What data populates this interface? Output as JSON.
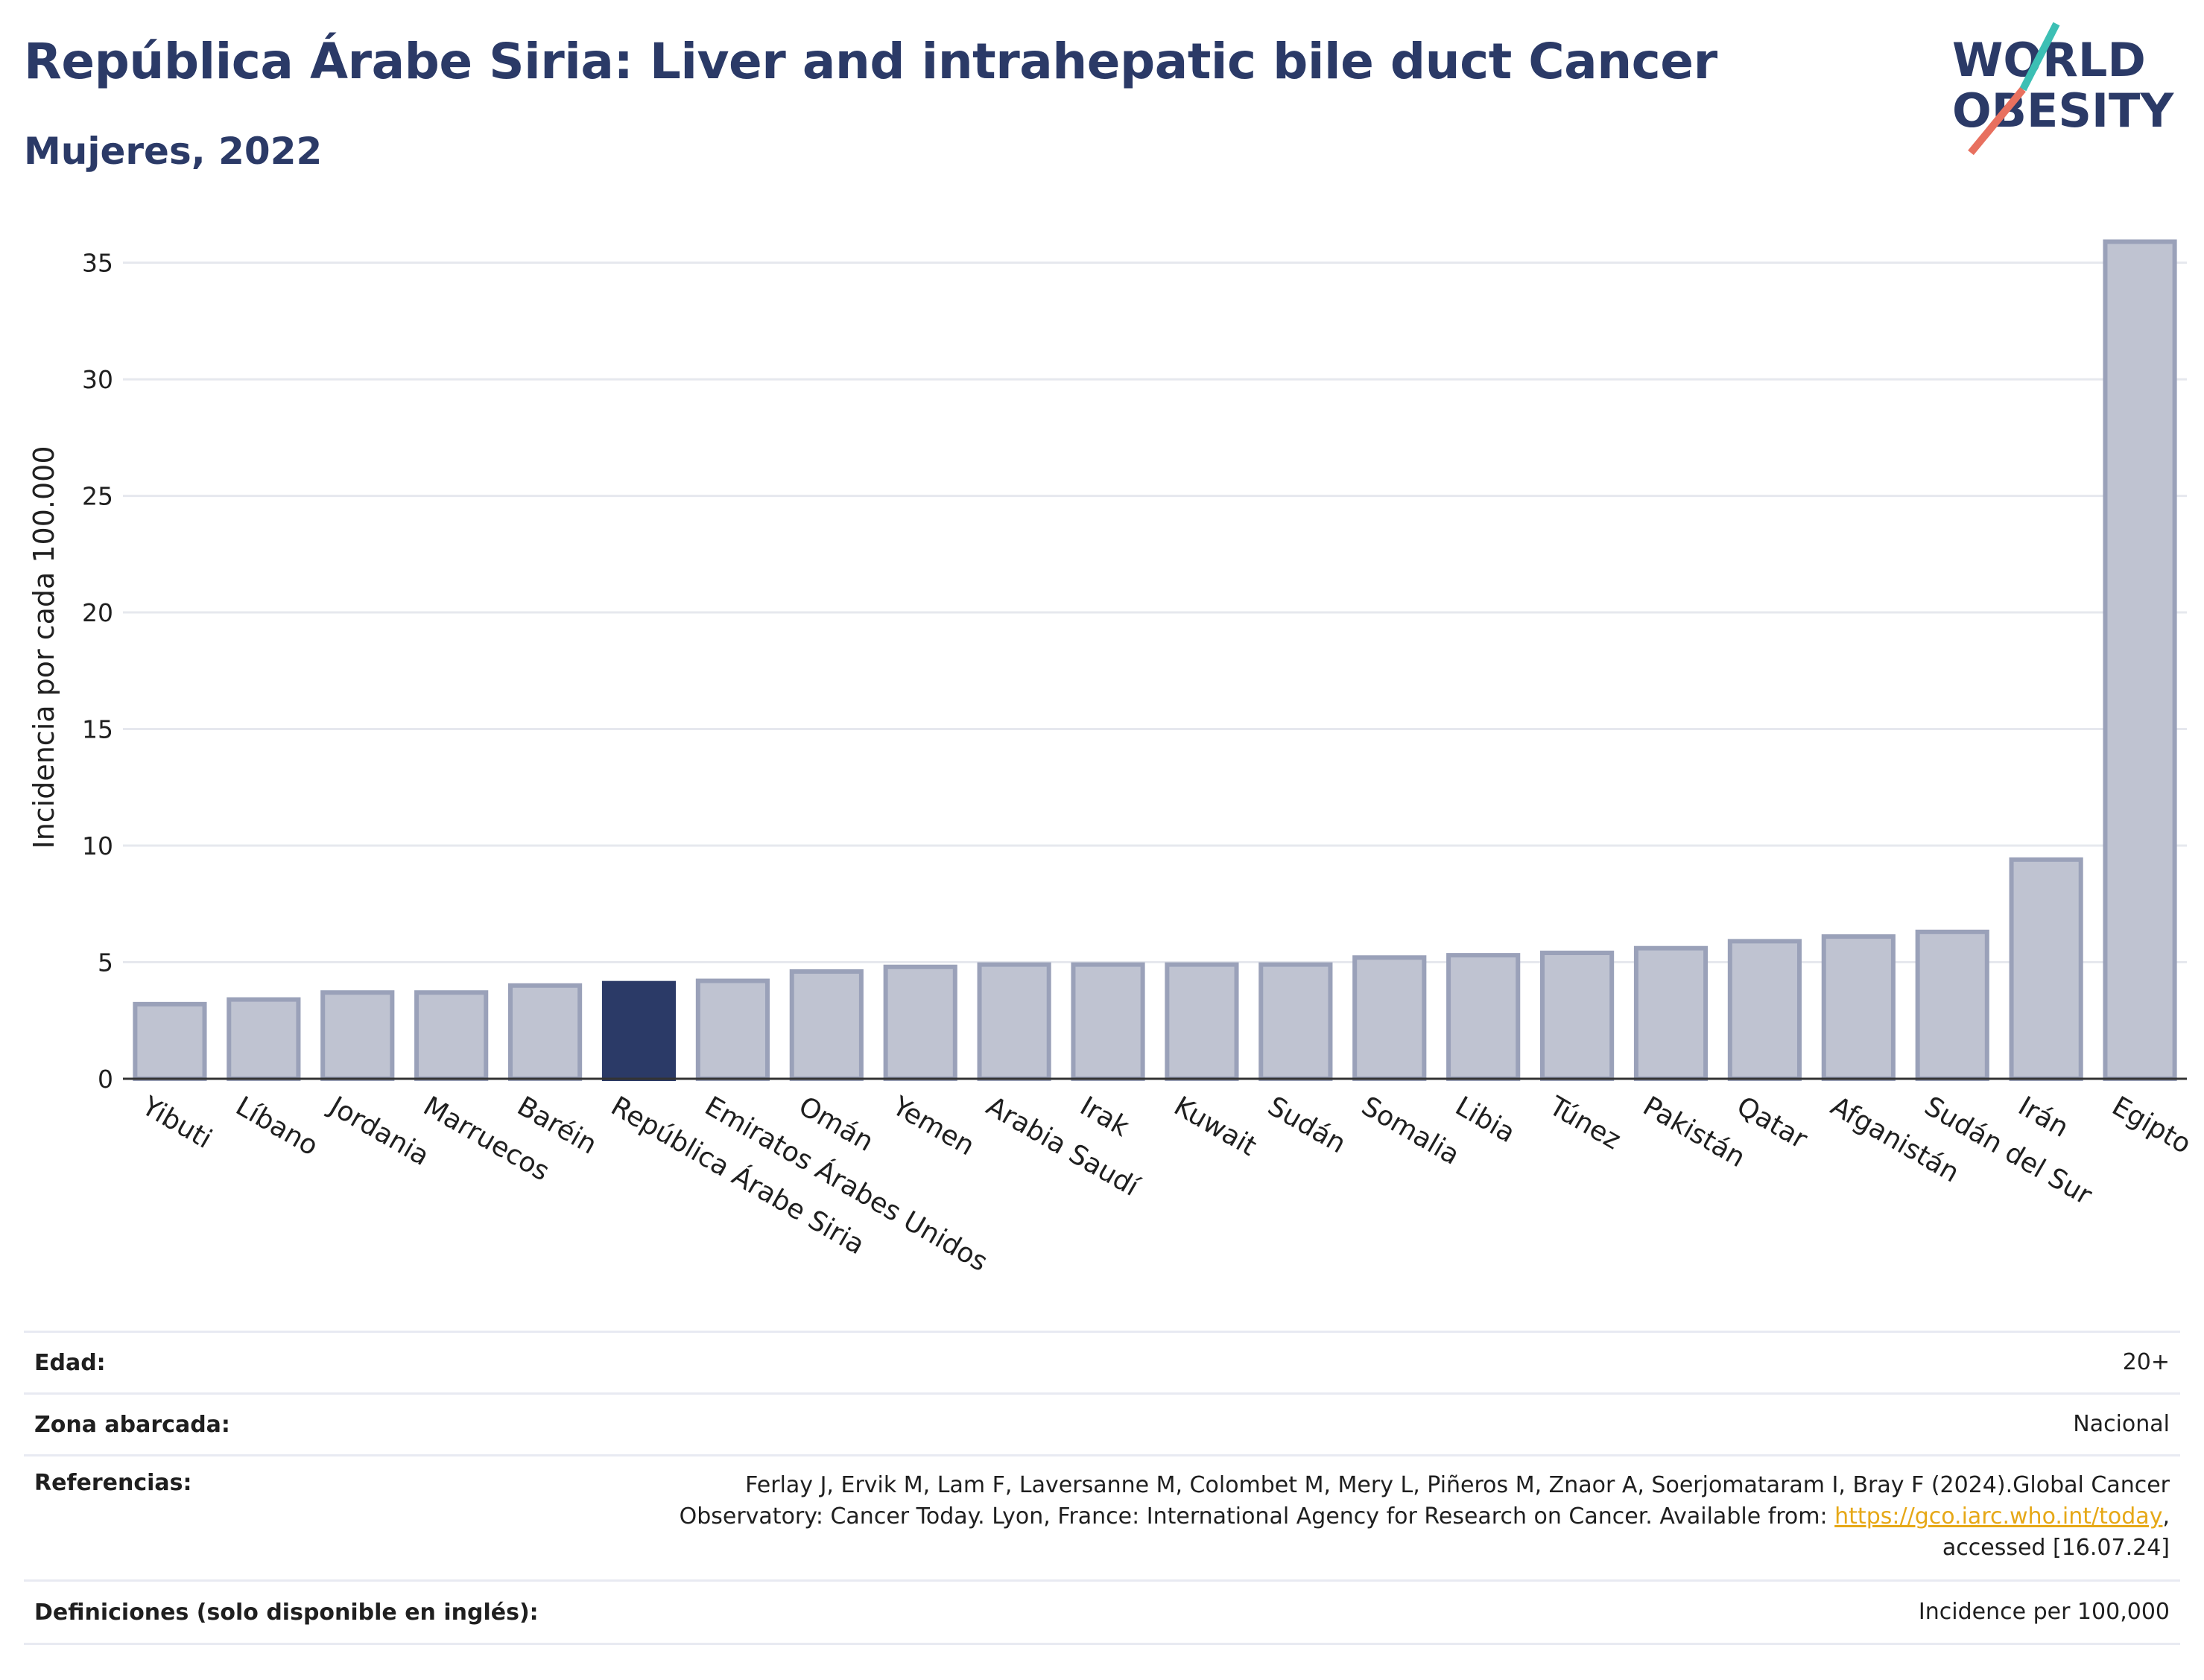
{
  "header": {
    "title": "República Árabe Siria: Liver and intrahepatic bile duct Cancer",
    "subtitle": "Mujeres, 2022"
  },
  "logo": {
    "line1": "WORLD",
    "line2": "OBESITY"
  },
  "colors": {
    "highlight": "#2b3a67",
    "bar_fill": "#bfc3d1",
    "bar_stroke": "#9aa1b9",
    "title": "#2b3a67",
    "logo_teal": "#3cbfb4",
    "logo_coral": "#e8705f",
    "link": "#e6a817"
  },
  "chart_data": {
    "type": "bar",
    "title": "República Árabe Siria: Liver and intrahepatic bile duct Cancer",
    "subtitle": "Mujeres, 2022",
    "xlabel": "",
    "ylabel": "Incidencia por cada 100.000",
    "ylim": [
      0,
      37
    ],
    "yticks": [
      0,
      5,
      10,
      15,
      20,
      25,
      30,
      35
    ],
    "grid": true,
    "highlight_category": "República Árabe Siria",
    "categories": [
      "Yibuti",
      "Líbano",
      "Jordania",
      "Marruecos",
      "Baréin",
      "República Árabe Siria",
      "Emiratos Árabes Unidos",
      "Omán",
      "Yemen",
      "Arabia Saudí",
      "Irak",
      "Kuwait",
      "Sudán",
      "Somalia",
      "Libia",
      "Túnez",
      "Pakistán",
      "Qatar",
      "Afganistán",
      "Sudán del Sur",
      "Irán",
      "Egipto"
    ],
    "values": [
      3.2,
      3.4,
      3.7,
      3.7,
      4.0,
      4.1,
      4.2,
      4.6,
      4.8,
      4.9,
      4.9,
      4.9,
      4.9,
      5.2,
      5.3,
      5.4,
      5.6,
      5.9,
      6.1,
      6.3,
      9.4,
      35.9
    ]
  },
  "meta": {
    "rows": [
      {
        "key": "Edad:",
        "value": "20+"
      },
      {
        "key": "Zona abarcada:",
        "value": "Nacional"
      },
      {
        "key": "Referencias:",
        "value_line1": "Ferlay J, Ervik M, Lam F, Laversanne M, Colombet M, Mery L, Piñeros M, Znaor A, Soerjomataram I, Bray F (2024).Global Cancer",
        "value_line2": "Observatory: Cancer Today. Lyon, France: International Agency for Research on Cancer. Available from: ",
        "link": "https://gco.iarc.who.int/today",
        "value_line2_end": ",",
        "value_line3": "accessed [16.07.24]"
      },
      {
        "key": "Definiciones (solo disponible en inglés):",
        "value": "Incidence per 100,000"
      }
    ]
  }
}
